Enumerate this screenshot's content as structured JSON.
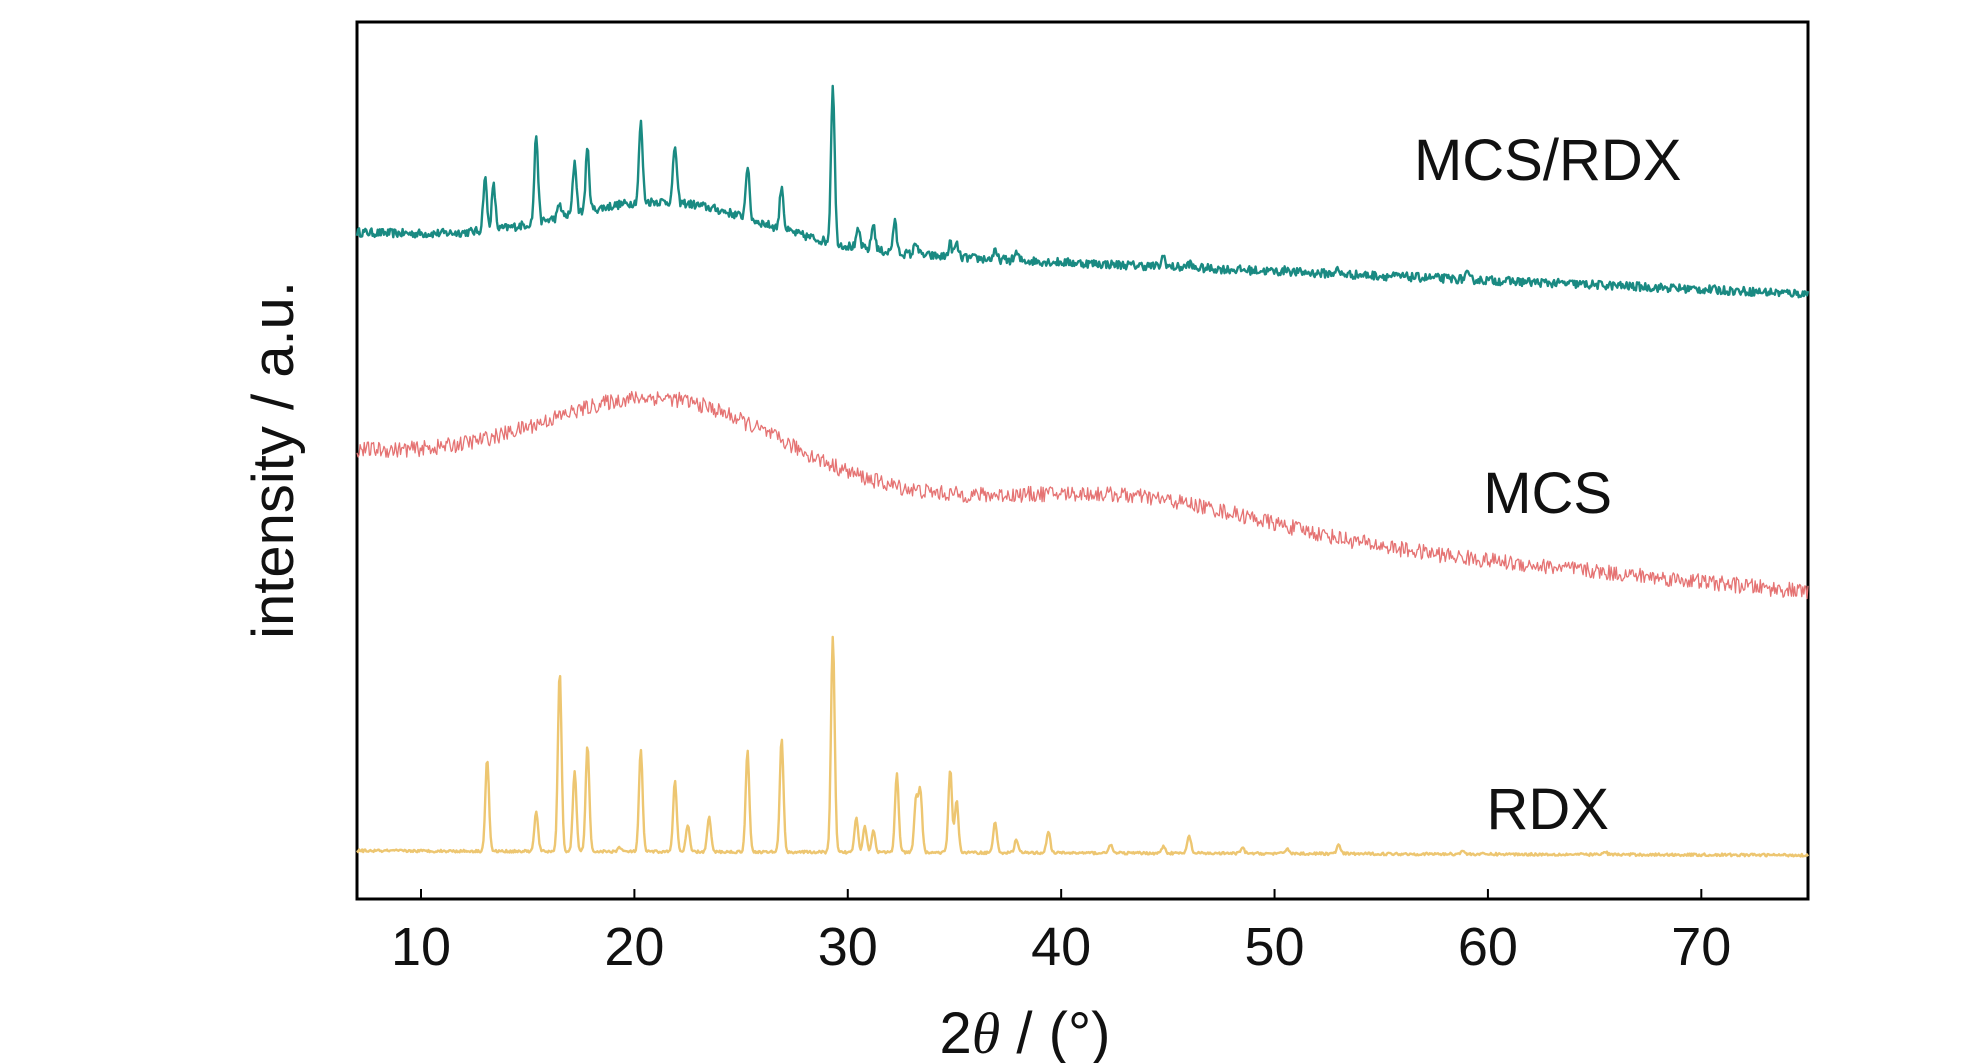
{
  "chart_data": {
    "type": "line",
    "title": "",
    "xlabel": "2θ / (°)",
    "xlabel_parts": {
      "prefix": "2",
      "symbol": "θ",
      "suffix": " / (°)"
    },
    "ylabel": "intensity / a.u.",
    "xlim": [
      7,
      75
    ],
    "ylim": [
      0,
      100
    ],
    "x_ticks": [
      10,
      20,
      30,
      40,
      50,
      60,
      70
    ],
    "y_ticks": [],
    "grid": false,
    "legend": "none",
    "series": [
      {
        "name": "MCS/RDX",
        "color": "#1a8a82",
        "baseline": 76,
        "noise": 0.5,
        "broad": [
          [
            21.5,
            4.5,
            5.0
          ]
        ],
        "drift": [
          [
            75,
            69
          ]
        ],
        "peaks": [
          [
            13.0,
            6.0
          ],
          [
            13.4,
            5.0
          ],
          [
            15.4,
            10.0
          ],
          [
            16.5,
            1.5
          ],
          [
            17.2,
            6.0
          ],
          [
            17.8,
            7.0
          ],
          [
            20.3,
            9.0
          ],
          [
            21.9,
            6.5
          ],
          [
            25.3,
            6.0
          ],
          [
            26.9,
            5.0
          ],
          [
            29.3,
            18.0
          ],
          [
            30.5,
            2.0
          ],
          [
            31.2,
            3.0
          ],
          [
            32.2,
            3.5
          ],
          [
            33.2,
            1.5
          ],
          [
            34.8,
            1.5
          ],
          [
            35.1,
            1.5
          ],
          [
            36.9,
            0.8
          ],
          [
            37.9,
            0.8
          ],
          [
            44.8,
            1.2
          ],
          [
            46.0,
            0.5
          ],
          [
            50.6,
            0.4
          ],
          [
            52.9,
            0.5
          ],
          [
            59.0,
            0.6
          ]
        ]
      },
      {
        "name": "MCS",
        "color": "#e57373",
        "baseline": 51,
        "noise": 0.9,
        "broad": [
          [
            21.5,
            5.5,
            9.5
          ],
          [
            43.5,
            6.0,
            3.5
          ]
        ],
        "drift": [
          [
            75,
            35
          ]
        ],
        "peaks": []
      },
      {
        "name": "RDX",
        "color": "#edc671",
        "baseline": 5.5,
        "noise": 0.15,
        "broad": [],
        "drift": [
          [
            75,
            5
          ]
        ],
        "peaks": [
          [
            13.1,
            10.5
          ],
          [
            15.4,
            4.5
          ],
          [
            16.5,
            20.5
          ],
          [
            17.2,
            9.0
          ],
          [
            17.8,
            12.0
          ],
          [
            19.3,
            0.5
          ],
          [
            20.3,
            11.5
          ],
          [
            21.9,
            8.0
          ],
          [
            22.5,
            3.0
          ],
          [
            23.5,
            4.0
          ],
          [
            25.3,
            11.5
          ],
          [
            26.9,
            13.0
          ],
          [
            29.3,
            24.5
          ],
          [
            30.4,
            4.0
          ],
          [
            30.8,
            3.0
          ],
          [
            31.2,
            2.5
          ],
          [
            32.3,
            9.0
          ],
          [
            33.2,
            6.0
          ],
          [
            33.4,
            7.0
          ],
          [
            34.8,
            9.5
          ],
          [
            35.1,
            6.0
          ],
          [
            36.9,
            3.5
          ],
          [
            37.9,
            1.5
          ],
          [
            39.4,
            2.5
          ],
          [
            42.3,
            1.0
          ],
          [
            44.8,
            0.8
          ],
          [
            46.0,
            2.0
          ],
          [
            48.5,
            0.6
          ],
          [
            50.6,
            0.6
          ],
          [
            53.0,
            1.0
          ],
          [
            58.8,
            0.4
          ],
          [
            65.5,
            0.3
          ]
        ]
      }
    ],
    "annotations": [
      {
        "text": "MCS/RDX",
        "x": 62.8,
        "y": 82
      },
      {
        "text": "MCS",
        "x": 62.8,
        "y": 44
      },
      {
        "text": "RDX",
        "x": 62.8,
        "y": 8
      }
    ]
  }
}
